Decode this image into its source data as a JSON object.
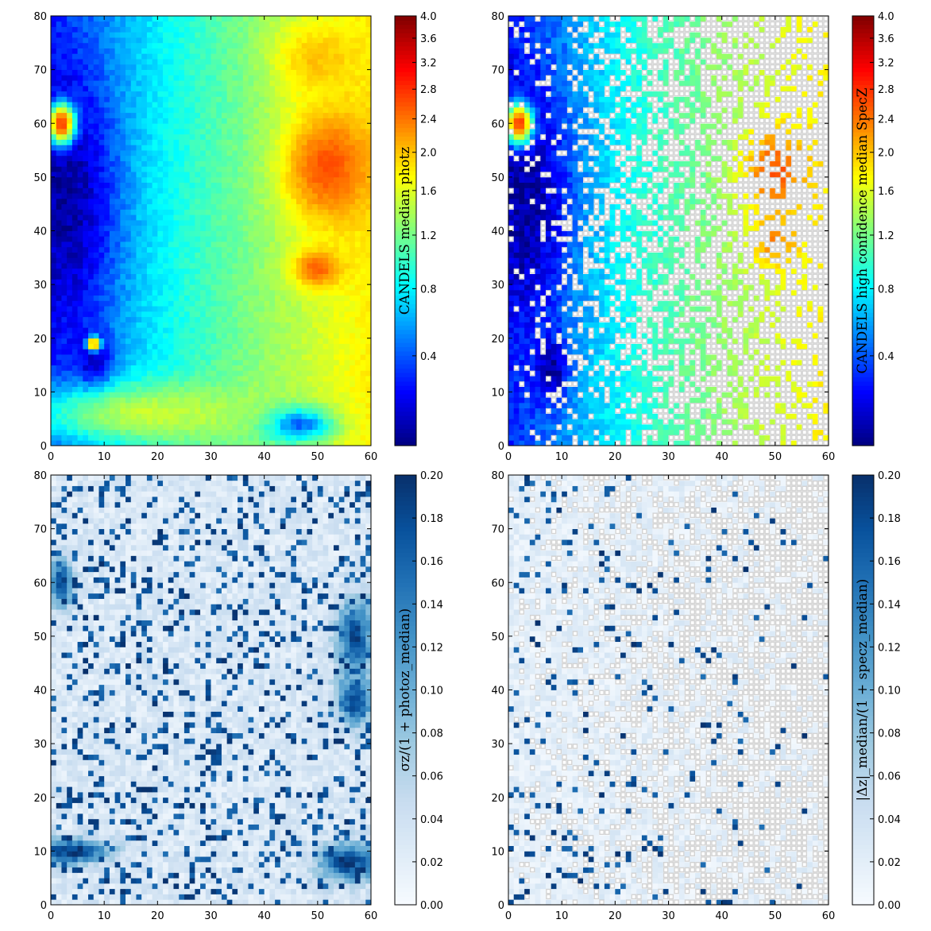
{
  "figure": {
    "colors": {
      "frame": "#000000",
      "empty_cell": "#ffffff",
      "contour": "#b0b0b0"
    },
    "colormaps": {
      "jet": [
        "#00007f",
        "#0000ff",
        "#007fff",
        "#00ffff",
        "#7fff7f",
        "#ffff00",
        "#ff7f00",
        "#ff0000",
        "#7f0000"
      ],
      "blues": [
        "#f7fbff",
        "#deebf7",
        "#c6dbef",
        "#9ecae1",
        "#6baed6",
        "#4292c6",
        "#2171b5",
        "#08519c",
        "#08306b"
      ]
    }
  },
  "chart_data": [
    {
      "type": "heatmap",
      "title": "",
      "colormap": "jet",
      "xlim": [
        0,
        60
      ],
      "ylim": [
        0,
        80
      ],
      "xticks": [
        "0",
        "10",
        "20",
        "30",
        "40",
        "50",
        "60"
      ],
      "yticks": [
        "0",
        "10",
        "20",
        "30",
        "40",
        "50",
        "60",
        "70",
        "80"
      ],
      "colorbar": {
        "label": "CANDELS median photz",
        "range": [
          0.0,
          4.0
        ],
        "scale": "log(1+z)",
        "ticks": [
          "0.4",
          "0.8",
          "1.2",
          "1.6",
          "2.0",
          "2.4",
          "2.8",
          "3.2",
          "3.6",
          "4.0"
        ],
        "tick_values": [
          0.4,
          0.8,
          1.2,
          1.6,
          2.0,
          2.4,
          2.8,
          3.2,
          3.6,
          4.0
        ]
      },
      "field": {
        "grid": [
          60,
          80
        ],
        "features": [
          {
            "kind": "gradient",
            "x_start": 0,
            "x_end": 60,
            "value_start": 0.3,
            "value_end": 1.8
          },
          {
            "kind": "blob",
            "x": 3,
            "y": 46,
            "sx": 8,
            "sy": 22,
            "value": 0.05
          },
          {
            "kind": "blob",
            "x": 8,
            "y": 14,
            "sx": 3,
            "sy": 6,
            "value": 0.05
          },
          {
            "kind": "blob",
            "x": 46,
            "y": 4,
            "sx": 6,
            "sy": 3,
            "value": 0.15
          },
          {
            "kind": "blob",
            "x": 2,
            "y": 60,
            "sx": 2,
            "sy": 3,
            "value": 2.8
          },
          {
            "kind": "blob",
            "x": 8,
            "y": 19,
            "sx": 1,
            "sy": 1,
            "value": 2.6
          },
          {
            "kind": "blob",
            "x": 52,
            "y": 52,
            "sx": 7,
            "sy": 9,
            "value": 2.6
          },
          {
            "kind": "blob",
            "x": 50,
            "y": 33,
            "sx": 4,
            "sy": 3,
            "value": 2.5
          },
          {
            "kind": "blob",
            "x": 50,
            "y": 72,
            "sx": 7,
            "sy": 6,
            "value": 2.0
          },
          {
            "kind": "blob",
            "x": 20,
            "y": 6,
            "sx": 20,
            "sy": 5,
            "value": 1.5
          }
        ],
        "missing_fraction": 0,
        "noise": 0.08
      }
    },
    {
      "type": "heatmap",
      "title": "",
      "colormap": "jet",
      "xlim": [
        0,
        60
      ],
      "ylim": [
        0,
        80
      ],
      "xticks": [
        "0",
        "10",
        "20",
        "30",
        "40",
        "50",
        "60"
      ],
      "yticks": [
        "0",
        "10",
        "20",
        "30",
        "40",
        "50",
        "60",
        "70",
        "80"
      ],
      "colorbar": {
        "label": "CANDELS high confidence median SpecZ",
        "range": [
          0.0,
          4.0
        ],
        "scale": "log(1+z)",
        "ticks": [
          "0.4",
          "0.8",
          "1.2",
          "1.6",
          "2.0",
          "2.4",
          "2.8",
          "3.2",
          "3.6",
          "4.0"
        ],
        "tick_values": [
          0.4,
          0.8,
          1.2,
          1.6,
          2.0,
          2.4,
          2.8,
          3.2,
          3.6,
          4.0
        ]
      },
      "field": {
        "grid": [
          60,
          80
        ],
        "features": [
          {
            "kind": "gradient",
            "x_start": 0,
            "x_end": 60,
            "value_start": 0.3,
            "value_end": 1.8
          },
          {
            "kind": "blob",
            "x": 3,
            "y": 46,
            "sx": 8,
            "sy": 22,
            "value": 0.05
          },
          {
            "kind": "blob",
            "x": 8,
            "y": 14,
            "sx": 3,
            "sy": 6,
            "value": 0.05
          },
          {
            "kind": "blob",
            "x": 2,
            "y": 60,
            "sx": 2,
            "sy": 3,
            "value": 2.8
          },
          {
            "kind": "blob",
            "x": 50,
            "y": 51,
            "sx": 5,
            "sy": 7,
            "value": 2.6
          },
          {
            "kind": "blob",
            "x": 50,
            "y": 38,
            "sx": 4,
            "sy": 4,
            "value": 2.3
          }
        ],
        "missing_fraction": 0.45,
        "missing_trend": "increases toward high x",
        "noise": 0.1
      }
    },
    {
      "type": "heatmap",
      "title": "",
      "colormap": "blues",
      "xlim": [
        0,
        60
      ],
      "ylim": [
        0,
        80
      ],
      "xticks": [
        "0",
        "10",
        "20",
        "30",
        "40",
        "50",
        "60"
      ],
      "yticks": [
        "0",
        "10",
        "20",
        "30",
        "40",
        "50",
        "60",
        "70",
        "80"
      ],
      "colorbar": {
        "label": "σz/(1 + photoz_median)",
        "range": [
          0.0,
          0.2
        ],
        "scale": "linear",
        "ticks": [
          "0.00",
          "0.02",
          "0.04",
          "0.06",
          "0.08",
          "0.10",
          "0.12",
          "0.14",
          "0.16",
          "0.18",
          "0.20"
        ],
        "tick_values": [
          0.0,
          0.02,
          0.04,
          0.06,
          0.08,
          0.1,
          0.12,
          0.14,
          0.16,
          0.18,
          0.2
        ]
      },
      "field": {
        "grid": [
          60,
          80
        ],
        "features": [
          {
            "kind": "background",
            "value": 0.03
          },
          {
            "kind": "blob",
            "x": 4,
            "y": 10,
            "sx": 6,
            "sy": 2,
            "value": 0.2
          },
          {
            "kind": "blob",
            "x": 56,
            "y": 8,
            "sx": 5,
            "sy": 3,
            "value": 0.2
          },
          {
            "kind": "blob",
            "x": 57,
            "y": 50,
            "sx": 3,
            "sy": 6,
            "value": 0.18
          },
          {
            "kind": "blob",
            "x": 2,
            "y": 60,
            "sx": 2,
            "sy": 4,
            "value": 0.18
          },
          {
            "kind": "blob",
            "x": 57,
            "y": 38,
            "sx": 3,
            "sy": 4,
            "value": 0.18
          }
        ],
        "speckle_fraction": 0.18,
        "missing_fraction": 0,
        "noise": 0.02
      }
    },
    {
      "type": "heatmap",
      "title": "",
      "colormap": "blues",
      "xlim": [
        0,
        60
      ],
      "ylim": [
        0,
        80
      ],
      "xticks": [
        "0",
        "10",
        "20",
        "30",
        "40",
        "50",
        "60"
      ],
      "yticks": [
        "0",
        "10",
        "20",
        "30",
        "40",
        "50",
        "60",
        "70",
        "80"
      ],
      "colorbar": {
        "label": "|Δz|_median/(1 + specz_median)",
        "range": [
          0.0,
          0.2
        ],
        "scale": "linear",
        "ticks": [
          "0.00",
          "0.02",
          "0.04",
          "0.06",
          "0.08",
          "0.10",
          "0.12",
          "0.14",
          "0.16",
          "0.18",
          "0.20"
        ],
        "tick_values": [
          0.0,
          0.02,
          0.04,
          0.06,
          0.08,
          0.1,
          0.12,
          0.14,
          0.16,
          0.18,
          0.2
        ]
      },
      "field": {
        "grid": [
          60,
          80
        ],
        "features": [
          {
            "kind": "background",
            "value": 0.02
          }
        ],
        "speckle_fraction": 0.1,
        "missing_fraction": 0.45,
        "missing_trend": "increases toward high x",
        "noise": 0.015
      }
    }
  ]
}
